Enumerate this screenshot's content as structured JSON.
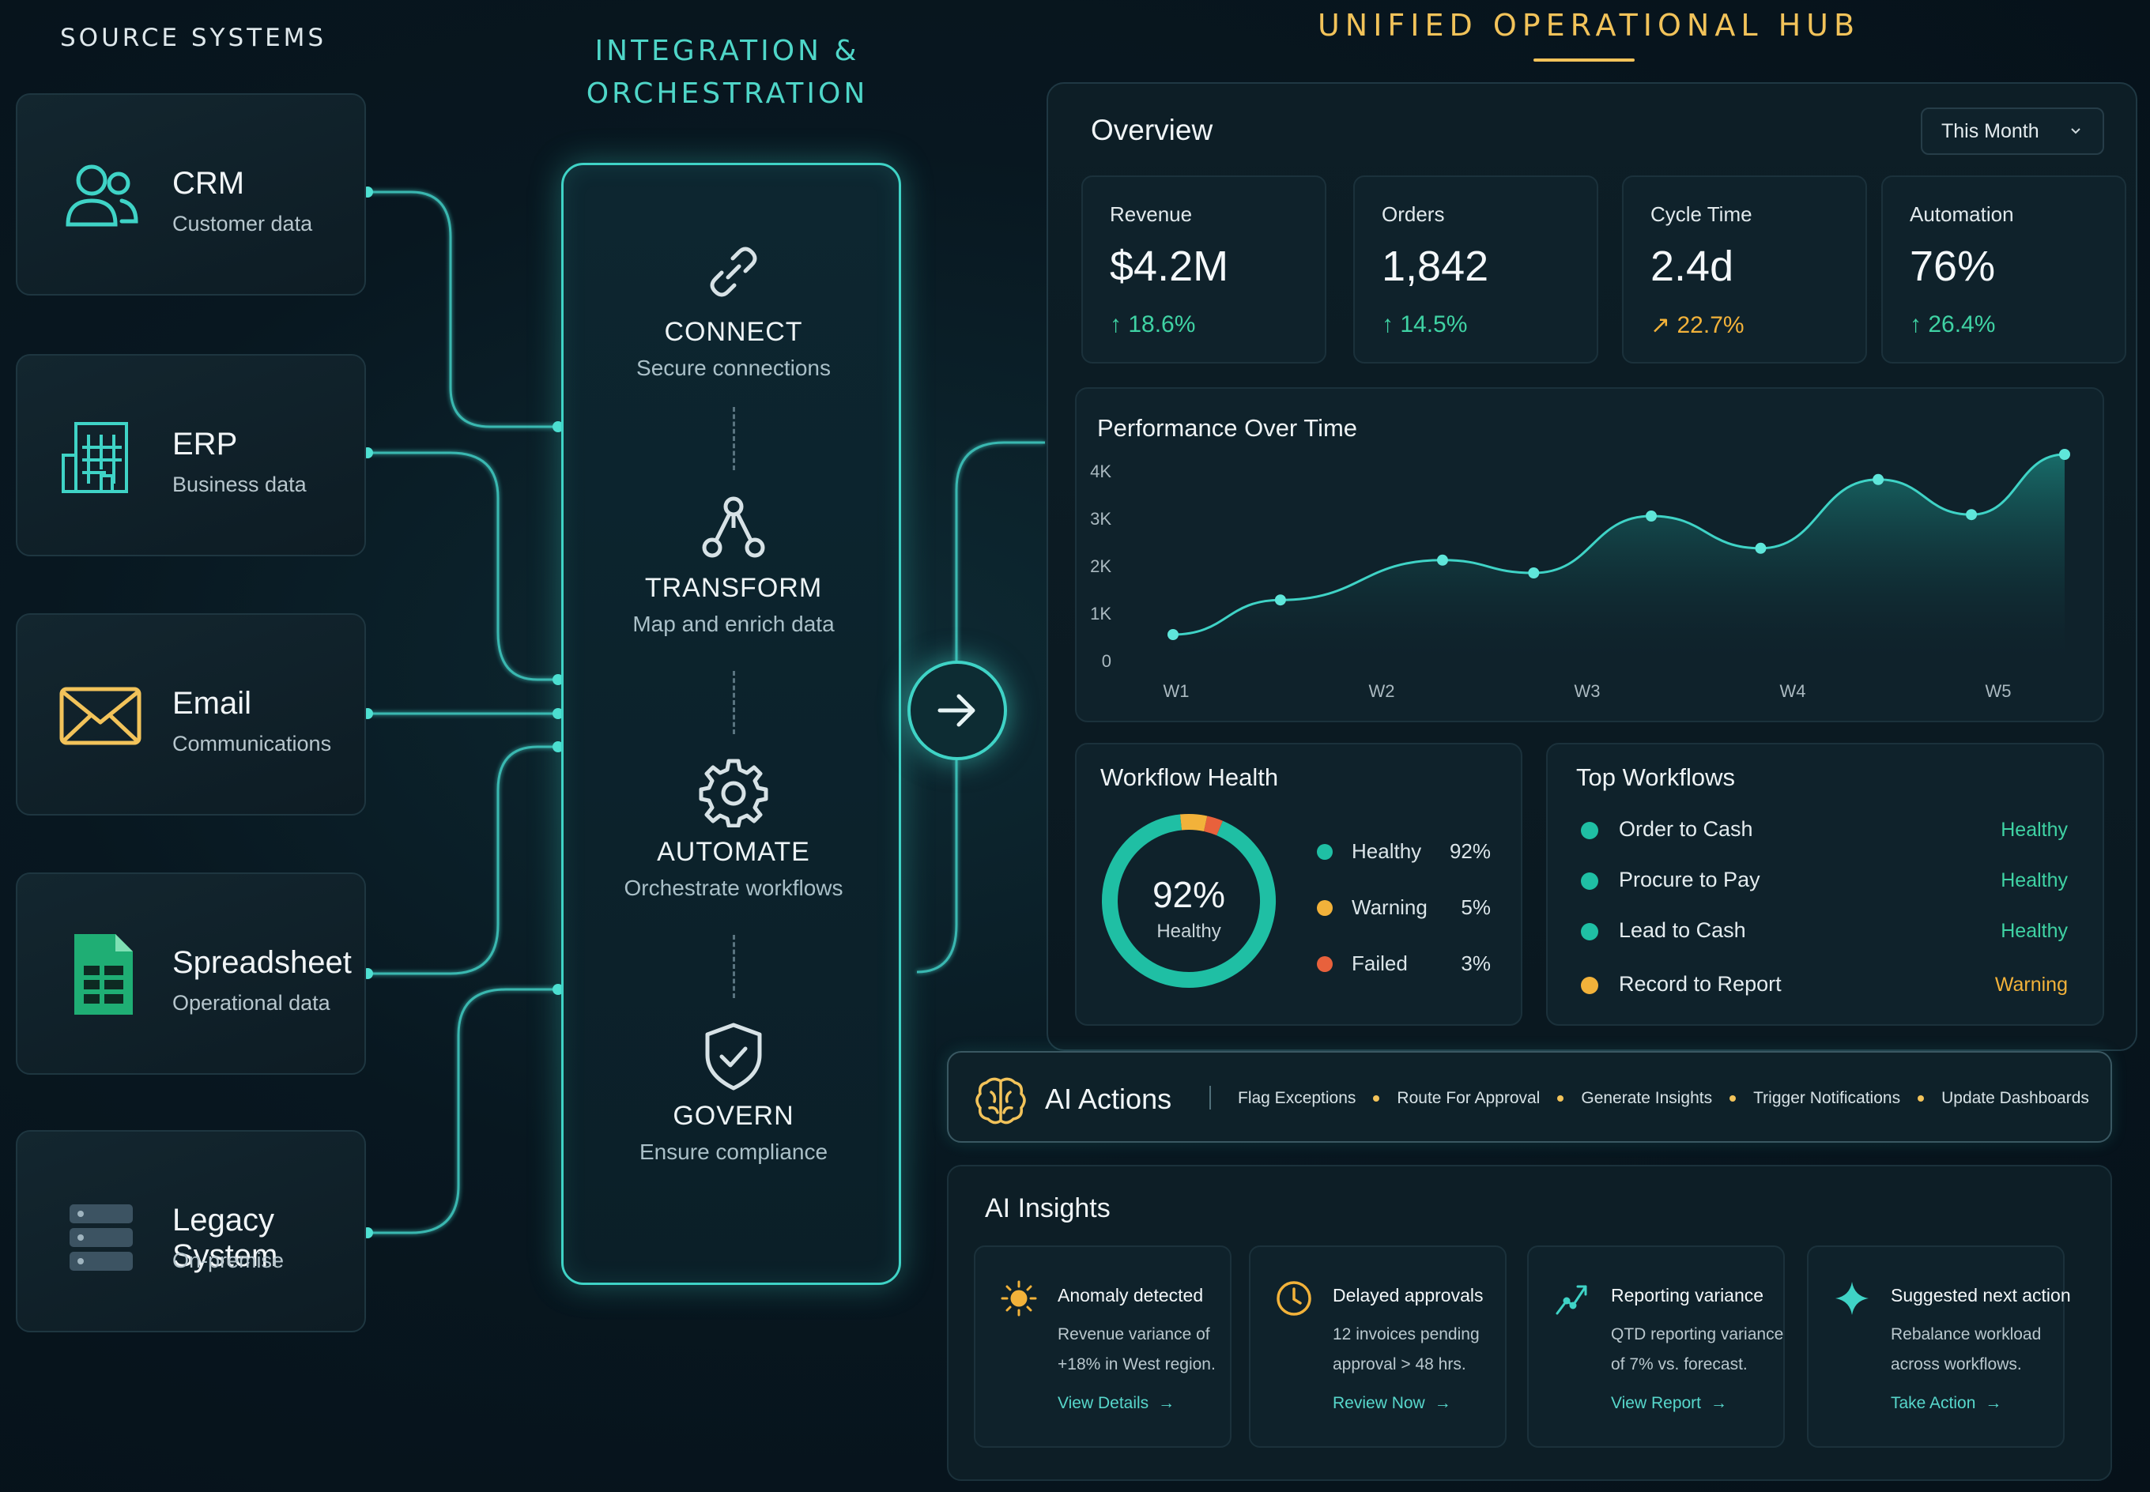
{
  "columns": {
    "source": "SOURCE SYSTEMS",
    "integration_line1": "INTEGRATION &",
    "integration_line2": "ORCHESTRATION",
    "hub": "UNIFIED OPERATIONAL HUB"
  },
  "sources": [
    {
      "name": "CRM",
      "desc": "Customer data",
      "icon": "users-icon"
    },
    {
      "name": "ERP",
      "desc": "Business data",
      "icon": "building-icon"
    },
    {
      "name": "Email",
      "desc": "Communications",
      "icon": "envelope-icon"
    },
    {
      "name": "Spreadsheet",
      "desc": "Operational data",
      "icon": "spreadsheet-icon"
    },
    {
      "name": "Legacy System",
      "desc": "On-premise",
      "icon": "server-icon"
    }
  ],
  "steps": [
    {
      "name": "CONNECT",
      "desc": "Secure connections",
      "icon": "link-icon"
    },
    {
      "name": "TRANSFORM",
      "desc": "Map and enrich data",
      "icon": "network-icon"
    },
    {
      "name": "AUTOMATE",
      "desc": "Orchestrate workflows",
      "icon": "gear-icon"
    },
    {
      "name": "GOVERN",
      "desc": "Ensure compliance",
      "icon": "shield-check-icon"
    }
  ],
  "overview": {
    "title": "Overview",
    "period": "This Month",
    "kpis": [
      {
        "label": "Revenue",
        "value": "$4.2M",
        "delta": "18.6%",
        "trend": "up",
        "color": "#3fd3a4"
      },
      {
        "label": "Orders",
        "value": "1,842",
        "delta": "14.5%",
        "trend": "up",
        "color": "#3fd3a4"
      },
      {
        "label": "Cycle Time",
        "value": "2.4d",
        "delta": "22.7%",
        "trend": "up-right",
        "color": "#f2b23a"
      },
      {
        "label": "Automation",
        "value": "76%",
        "delta": "26.4%",
        "trend": "up",
        "color": "#3fd3a4"
      }
    ]
  },
  "performance": {
    "title": "Performance Over Time"
  },
  "chart_data": {
    "type": "area",
    "title": "Performance Over Time",
    "x_ticks": [
      "W1",
      "W2",
      "W3",
      "W4",
      "W5"
    ],
    "y_ticks": [
      "0",
      "1K",
      "2K",
      "3K",
      "4K"
    ],
    "ylim": [
      0,
      4000
    ],
    "xlim": [
      0,
      4.4
    ],
    "points": [
      {
        "x": 0.0,
        "y": 550
      },
      {
        "x": 0.53,
        "y": 1280
      },
      {
        "x": 1.33,
        "y": 2120
      },
      {
        "x": 1.78,
        "y": 1850
      },
      {
        "x": 2.36,
        "y": 3050
      },
      {
        "x": 2.9,
        "y": 2370
      },
      {
        "x": 3.48,
        "y": 3820
      },
      {
        "x": 3.94,
        "y": 3080
      },
      {
        "x": 4.4,
        "y": 4350
      }
    ],
    "color": "#3fd3c6",
    "grid": false
  },
  "workflow_health": {
    "title": "Workflow Health",
    "center_value": "92%",
    "center_label": "Healthy",
    "items": [
      {
        "name": "Healthy",
        "pct": "92%",
        "value": 92,
        "color": "#1fbfa4"
      },
      {
        "name": "Warning",
        "pct": "5%",
        "value": 5,
        "color": "#f2b23a"
      },
      {
        "name": "Failed",
        "pct": "3%",
        "value": 3,
        "color": "#e8613c"
      }
    ]
  },
  "top_workflows": {
    "title": "Top Workflows",
    "items": [
      {
        "name": "Order to Cash",
        "status": "Healthy",
        "color": "#1fbfa4",
        "status_color": "#3fd3a4"
      },
      {
        "name": "Procure to Pay",
        "status": "Healthy",
        "color": "#1fbfa4",
        "status_color": "#3fd3a4"
      },
      {
        "name": "Lead to Cash",
        "status": "Healthy",
        "color": "#1fbfa4",
        "status_color": "#3fd3a4"
      },
      {
        "name": "Record to Report",
        "status": "Warning",
        "color": "#f2b23a",
        "status_color": "#f2b23a"
      }
    ]
  },
  "ai_actions": {
    "title": "AI Actions",
    "items": [
      "Flag Exceptions",
      "Route For Approval",
      "Generate Insights",
      "Trigger Notifications",
      "Update Dashboards"
    ]
  },
  "ai_insights": {
    "title": "AI Insights",
    "cards": [
      {
        "title": "Anomaly detected",
        "body1": "Revenue variance of",
        "body2": "+18% in West region.",
        "link": "View Details",
        "icon": "anomaly-icon"
      },
      {
        "title": "Delayed approvals",
        "body1": "12 invoices pending",
        "body2": "approval > 48 hrs.",
        "link": "Review Now",
        "icon": "clock-icon"
      },
      {
        "title": "Reporting variance",
        "body1": "QTD reporting variance",
        "body2": "of 7% vs. forecast.",
        "link": "View Report",
        "icon": "trend-icon"
      },
      {
        "title": "Suggested next action",
        "body1": "Rebalance workload",
        "body2": "across workflows.",
        "link": "Take Action",
        "icon": "sparkle-icon"
      }
    ]
  }
}
